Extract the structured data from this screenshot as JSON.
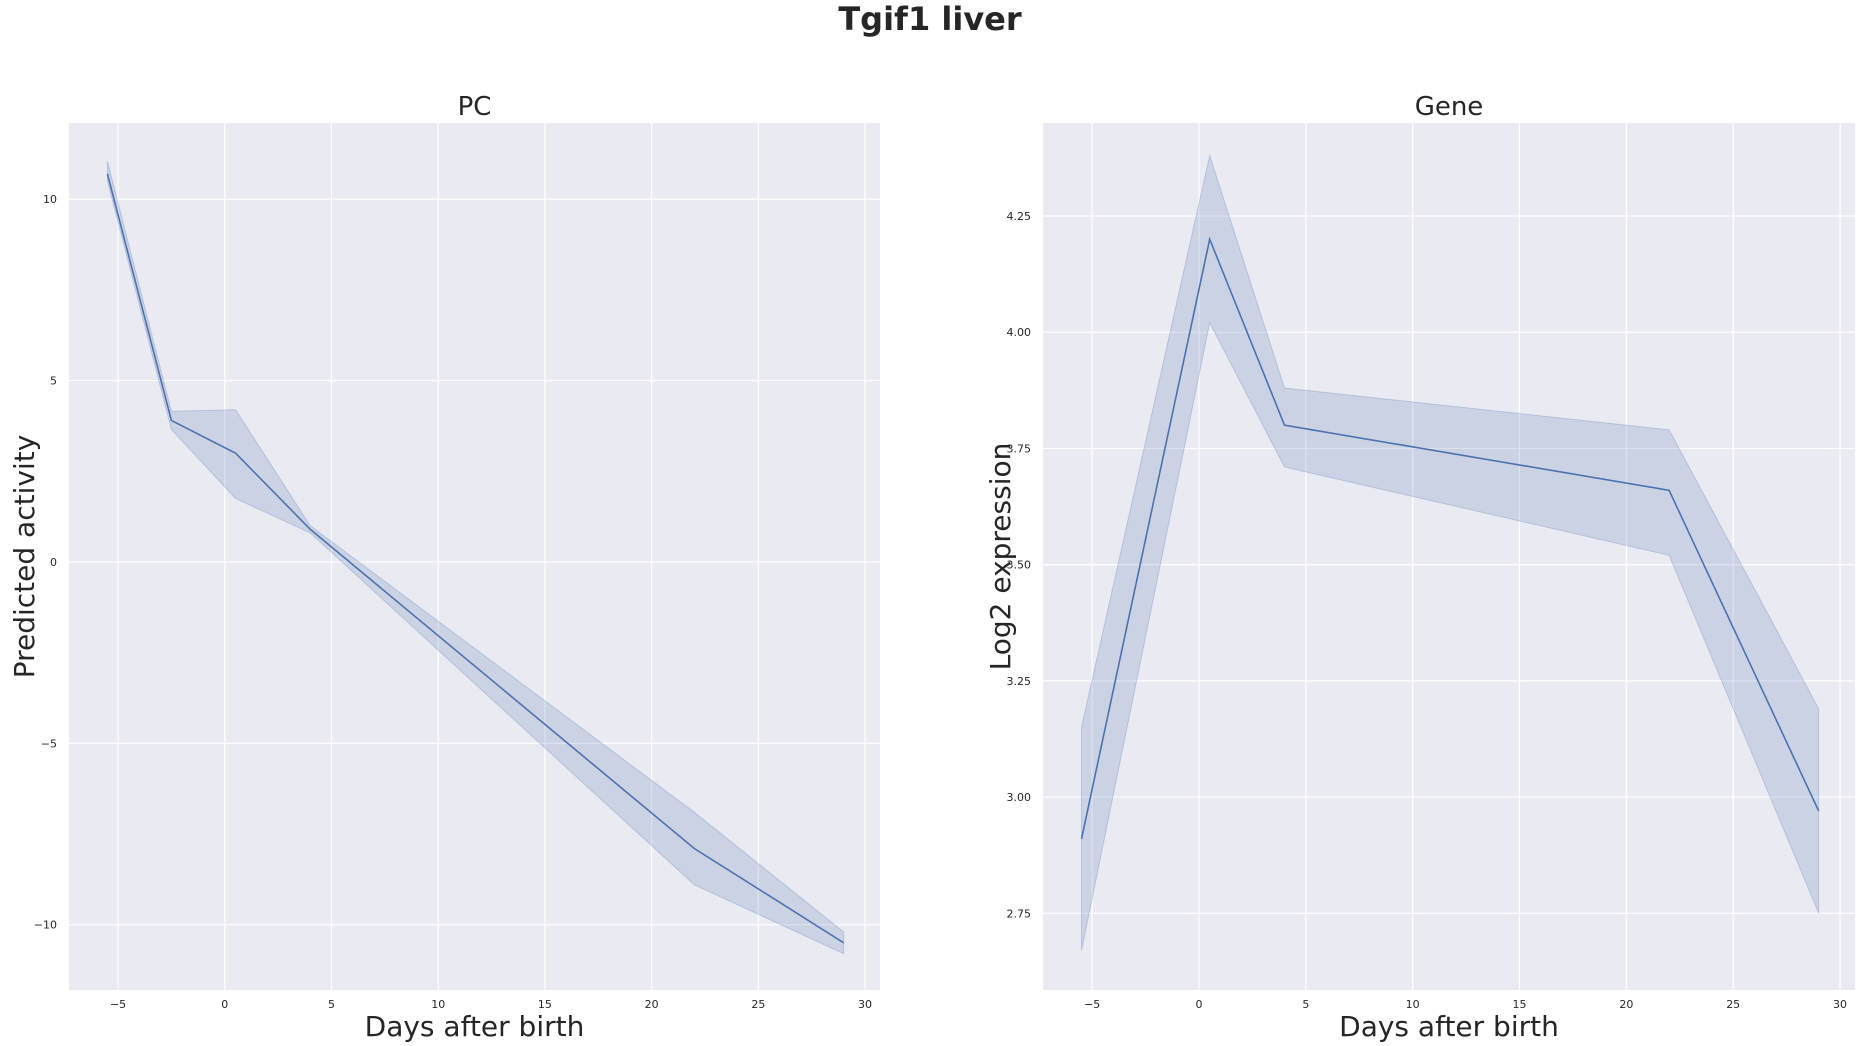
{
  "figure": {
    "title": "Tgif1 liver"
  },
  "chart_data": [
    {
      "type": "line",
      "title": "PC",
      "xlabel": "Days after birth",
      "ylabel": "Predicted activity",
      "xlim": [
        -7.3,
        30.7
      ],
      "ylim": [
        -11.8,
        12.1
      ],
      "xticks": [
        -5,
        0,
        5,
        10,
        15,
        20,
        25,
        30
      ],
      "xtick_labels": [
        "−5",
        "0",
        "5",
        "10",
        "15",
        "20",
        "25",
        "30"
      ],
      "yticks": [
        -10,
        -5,
        0,
        5,
        10
      ],
      "ytick_labels": [
        "−10",
        "−5",
        "0",
        "5",
        "10"
      ],
      "grid": true,
      "series": [
        {
          "x": [
            -5.5,
            -2.5,
            0.5,
            4,
            22,
            29
          ],
          "y": [
            10.7,
            3.9,
            3.0,
            0.9,
            -7.9,
            -10.5
          ],
          "lower": [
            10.5,
            3.65,
            1.75,
            0.8,
            -8.9,
            -10.8
          ],
          "upper": [
            11.05,
            4.15,
            4.2,
            1.0,
            -6.9,
            -10.2
          ]
        }
      ]
    },
    {
      "type": "line",
      "title": "Gene",
      "xlabel": "Days after birth",
      "ylabel": "Log2 expression",
      "xlim": [
        -7.3,
        30.7
      ],
      "ylim": [
        2.585,
        4.45
      ],
      "xticks": [
        -5,
        0,
        5,
        10,
        15,
        20,
        25,
        30
      ],
      "xtick_labels": [
        "−5",
        "0",
        "5",
        "10",
        "15",
        "20",
        "25",
        "30"
      ],
      "yticks": [
        2.75,
        3.0,
        3.25,
        3.5,
        3.75,
        4.0,
        4.25
      ],
      "ytick_labels": [
        "2.75",
        "3.00",
        "3.25",
        "3.50",
        "3.75",
        "4.00",
        "4.25"
      ],
      "grid": true,
      "series": [
        {
          "x": [
            -5.5,
            0.5,
            4,
            22,
            29
          ],
          "y": [
            2.91,
            4.2,
            3.8,
            3.66,
            2.97
          ],
          "lower": [
            2.67,
            4.02,
            3.71,
            3.52,
            2.75
          ],
          "upper": [
            3.15,
            4.38,
            3.88,
            3.79,
            3.19
          ]
        }
      ]
    }
  ]
}
